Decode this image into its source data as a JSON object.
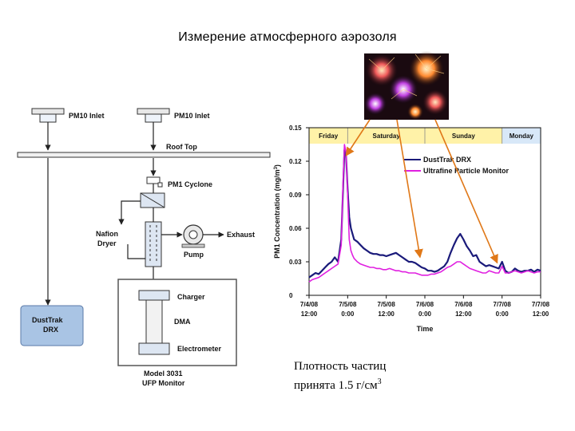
{
  "title": "Измерение атмосферного аэрозоля",
  "caption": {
    "line1": "Плотность частиц",
    "line2": "принята 1.5 г/см",
    "sup": "3"
  },
  "diagram": {
    "inlet1": "PM10 Inlet",
    "inlet2": "PM10 Inlet",
    "roof": "Roof Top",
    "cyclone": "PM1 Cyclone",
    "dryer1": "Nafion",
    "dryer2": "Dryer",
    "exhaust": "Exhaust",
    "pump": "Pump",
    "charger": "Charger",
    "dma": "DMA",
    "electrometer": "Electrometer",
    "dusttrak1": "DustTrak",
    "dusttrak2": "DRX",
    "model1": "Model 3031",
    "model2": "UFP Monitor"
  },
  "colors": {
    "dusttrak": "#1a1a7a",
    "ultrafine": "#e020e0",
    "daybar": "#fff2a8",
    "mondaybar": "#d8e8f8",
    "arrow": "#e07818",
    "dusttrak_box": "#a9c4e4"
  },
  "photo": {
    "icon": "fireworks-photo"
  },
  "chart_data": {
    "type": "line",
    "title": "",
    "xlabel": "Time",
    "ylabel": "PM1 Concentration (mg/m",
    "ylabel_sup": "3",
    "ylabel_end": ")",
    "ylim": [
      0,
      0.15
    ],
    "yticks": [
      "0",
      "0.03",
      "0.06",
      "0.09",
      "0.12",
      "0.15"
    ],
    "xlim": [
      0,
      72
    ],
    "xticks": [
      {
        "l1": "7/4/08",
        "l2": "12:00",
        "x": 0
      },
      {
        "l1": "7/5/08",
        "l2": "0:00",
        "x": 12
      },
      {
        "l1": "7/5/08",
        "l2": "12:00",
        "x": 24
      },
      {
        "l1": "7/6/08",
        "l2": "0:00",
        "x": 36
      },
      {
        "l1": "7/6/08",
        "l2": "12:00",
        "x": 48
      },
      {
        "l1": "7/7/08",
        "l2": "0:00",
        "x": 60
      },
      {
        "l1": "7/7/08",
        "l2": "12:00",
        "x": 72
      }
    ],
    "days": [
      {
        "name": "Friday",
        "start": 0,
        "end": 12
      },
      {
        "name": "Saturday",
        "start": 12,
        "end": 36
      },
      {
        "name": "Sunday",
        "start": 36,
        "end": 60
      },
      {
        "name": "Monday",
        "start": 60,
        "end": 72
      }
    ],
    "grid": false,
    "legend_position": "top-right",
    "series": [
      {
        "name": "DustTrak DRX",
        "x": [
          0,
          1,
          2,
          3,
          4,
          5,
          6,
          7,
          8,
          9,
          10,
          10.5,
          11,
          11.5,
          12,
          12.5,
          13,
          13.5,
          14,
          15,
          16,
          17,
          18,
          19,
          20,
          21,
          22,
          23,
          24,
          25,
          26,
          27,
          28,
          29,
          30,
          31,
          32,
          33,
          34,
          35,
          36,
          37,
          38,
          39,
          40,
          41,
          42,
          43,
          44,
          45,
          46,
          47,
          48,
          49,
          50,
          51,
          52,
          53,
          54,
          55,
          56,
          57,
          58,
          59,
          60,
          61,
          62,
          63,
          64,
          65,
          66,
          67,
          68,
          69,
          70,
          71,
          72
        ],
        "y": [
          0.016,
          0.018,
          0.02,
          0.019,
          0.022,
          0.025,
          0.028,
          0.03,
          0.034,
          0.03,
          0.05,
          0.09,
          0.13,
          0.125,
          0.095,
          0.07,
          0.06,
          0.055,
          0.05,
          0.048,
          0.045,
          0.042,
          0.04,
          0.038,
          0.037,
          0.037,
          0.036,
          0.036,
          0.035,
          0.036,
          0.037,
          0.038,
          0.036,
          0.034,
          0.032,
          0.03,
          0.03,
          0.029,
          0.027,
          0.025,
          0.024,
          0.022,
          0.022,
          0.021,
          0.022,
          0.024,
          0.026,
          0.03,
          0.038,
          0.045,
          0.051,
          0.055,
          0.05,
          0.044,
          0.04,
          0.035,
          0.036,
          0.03,
          0.028,
          0.026,
          0.027,
          0.026,
          0.025,
          0.024,
          0.03,
          0.022,
          0.02,
          0.021,
          0.024,
          0.022,
          0.021,
          0.022,
          0.022,
          0.023,
          0.021,
          0.023,
          0.022
        ]
      },
      {
        "name": "Ultrafine Particle Monitor",
        "x": [
          0,
          1,
          2,
          3,
          4,
          5,
          6,
          7,
          8,
          9,
          10,
          10.5,
          11,
          11.5,
          12,
          12.5,
          13,
          13.5,
          14,
          15,
          16,
          17,
          18,
          19,
          20,
          21,
          22,
          23,
          24,
          25,
          26,
          27,
          28,
          29,
          30,
          31,
          32,
          33,
          34,
          35,
          36,
          37,
          38,
          39,
          40,
          41,
          42,
          43,
          44,
          45,
          46,
          47,
          48,
          49,
          50,
          51,
          52,
          53,
          54,
          55,
          56,
          57,
          58,
          59,
          60,
          61,
          62,
          63,
          64,
          65,
          66,
          67,
          68,
          69,
          70,
          71,
          72
        ],
        "y": [
          0.012,
          0.014,
          0.015,
          0.016,
          0.018,
          0.02,
          0.022,
          0.024,
          0.026,
          0.028,
          0.045,
          0.095,
          0.135,
          0.128,
          0.09,
          0.05,
          0.04,
          0.036,
          0.033,
          0.03,
          0.028,
          0.027,
          0.026,
          0.025,
          0.025,
          0.024,
          0.024,
          0.023,
          0.023,
          0.024,
          0.023,
          0.022,
          0.022,
          0.021,
          0.021,
          0.02,
          0.02,
          0.02,
          0.019,
          0.018,
          0.018,
          0.018,
          0.019,
          0.019,
          0.02,
          0.021,
          0.023,
          0.025,
          0.026,
          0.028,
          0.03,
          0.03,
          0.028,
          0.026,
          0.024,
          0.023,
          0.022,
          0.021,
          0.02,
          0.02,
          0.022,
          0.021,
          0.02,
          0.02,
          0.026,
          0.02,
          0.02,
          0.021,
          0.022,
          0.021,
          0.02,
          0.021,
          0.022,
          0.021,
          0.02,
          0.021,
          0.021
        ]
      }
    ],
    "annotations": [
      {
        "from_x": 11.5,
        "to_x": 11.5,
        "to_y": 0.125
      },
      {
        "from_x": 36,
        "to_x": 34.5,
        "to_y": 0.034
      },
      {
        "from_x": 36,
        "to_x": 58.5,
        "to_y": 0.029
      }
    ]
  }
}
